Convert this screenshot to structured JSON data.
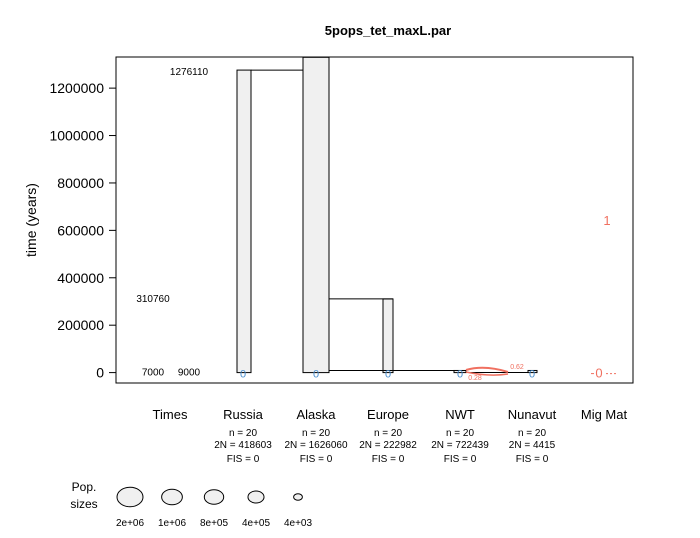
{
  "chart_data": {
    "type": "other",
    "title": "5pops_tet_maxL.par",
    "ylabel": "time (years)",
    "ylim": [
      -40000,
      1330000
    ],
    "y_ticks": [
      0,
      200000,
      400000,
      600000,
      800000,
      1000000,
      1200000
    ],
    "y_tick_labels": [
      "0",
      "200000",
      "400000",
      "600000",
      "800000",
      "1000000",
      "1200000"
    ],
    "columns": [
      "Times",
      "Russia",
      "Alaska",
      "Europe",
      "NWT",
      "Nunavut",
      "Mig Mat"
    ],
    "populations": [
      {
        "name": "Russia",
        "n": "n = 20",
        "two_n": "2N = 418603",
        "fis": "FIS = 0",
        "top_time": 1276110,
        "index": "0"
      },
      {
        "name": "Alaska",
        "n": "n = 20",
        "two_n": "2N = 1626060",
        "fis": "FIS = 0",
        "top_time": 1330000,
        "index": "0"
      },
      {
        "name": "Europe",
        "n": "n = 20",
        "two_n": "2N = 222982",
        "fis": "FIS = 0",
        "top_time": 310760,
        "index": "0"
      },
      {
        "name": "NWT",
        "n": "n = 20",
        "two_n": "2N = 722439",
        "fis": "FIS = 0",
        "top_time": 9000,
        "index": "0"
      },
      {
        "name": "Nunavut",
        "n": "n = 20",
        "two_n": "2N = 4415",
        "fis": "FIS = 0",
        "top_time": 9000,
        "index": "0"
      }
    ],
    "event_times": [
      {
        "label": "1276110",
        "value": 1276110
      },
      {
        "label": "310760",
        "value": 310760
      },
      {
        "label": "7000",
        "value": 7000
      },
      {
        "label": "9000",
        "value": 9000
      }
    ],
    "merges": [
      {
        "from": "Russia",
        "to": "Alaska",
        "time": 1276110
      },
      {
        "from": "Europe",
        "to": "Alaska",
        "time": 310760
      },
      {
        "from": "NWT",
        "to": "Alaska",
        "time": 9000
      },
      {
        "from": "Nunavut",
        "to": "NWT",
        "time": 9000
      }
    ],
    "migration": {
      "matrix_labels": [
        "1",
        "0"
      ],
      "rate_labels": [
        "0.62",
        "0.28"
      ],
      "color": "#f07060"
    },
    "legend": {
      "title": "Pop.\nsizes",
      "title_line1": "Pop.",
      "title_line2": "sizes",
      "placement": "bottom-left",
      "entries": [
        {
          "label": "2e+06",
          "value": 2000000
        },
        {
          "label": "1e+06",
          "value": 1000000
        },
        {
          "label": "8e+05",
          "value": 800000
        },
        {
          "label": "4e+05",
          "value": 400000
        },
        {
          "label": "4e+03",
          "value": 4000
        }
      ]
    },
    "colors": {
      "box_fill": "#f0f0f0",
      "index_label": "#4a8fd0",
      "migration": "#f07060"
    }
  }
}
